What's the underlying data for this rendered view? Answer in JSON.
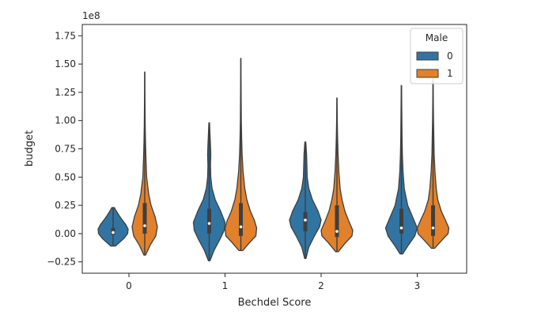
{
  "chart_data": {
    "type": "violin",
    "xlabel": "Bechdel Score",
    "ylabel": "budget",
    "offset_text": "1e8",
    "categories": [
      "0",
      "1",
      "2",
      "3"
    ],
    "ylim": [
      -0.35,
      1.85
    ],
    "yticks": [
      -0.25,
      0.0,
      0.25,
      0.5,
      0.75,
      1.0,
      1.25,
      1.5,
      1.75
    ],
    "ytick_labels": [
      "−0.25",
      "0.00",
      "0.25",
      "0.50",
      "0.75",
      "1.00",
      "1.25",
      "1.50",
      "1.75"
    ],
    "legend": {
      "title": "Male",
      "placement": "top-right"
    },
    "series": [
      {
        "name": "0",
        "color": "#3274a1",
        "violins": [
          {
            "category": "0",
            "min": -0.11,
            "max": 0.23,
            "q1": -0.01,
            "median": 0.01,
            "q3": 0.05,
            "profile": [
              [
                -0.11,
                0.15
              ],
              [
                -0.08,
                0.38
              ],
              [
                -0.04,
                0.7
              ],
              [
                0.0,
                0.92
              ],
              [
                0.04,
                0.95
              ],
              [
                0.08,
                0.8
              ],
              [
                0.12,
                0.58
              ],
              [
                0.16,
                0.38
              ],
              [
                0.2,
                0.2
              ],
              [
                0.23,
                0.08
              ]
            ]
          },
          {
            "category": "1",
            "min": -0.24,
            "max": 0.98,
            "q1": 0.0,
            "median": 0.09,
            "q3": 0.22,
            "profile": [
              [
                -0.24,
                0.05
              ],
              [
                -0.15,
                0.3
              ],
              [
                -0.05,
                0.68
              ],
              [
                0.03,
                0.95
              ],
              [
                0.1,
                1.0
              ],
              [
                0.2,
                0.72
              ],
              [
                0.3,
                0.38
              ],
              [
                0.4,
                0.18
              ],
              [
                0.5,
                0.1
              ],
              [
                0.6,
                0.08
              ],
              [
                0.7,
                0.1
              ],
              [
                0.78,
                0.08
              ],
              [
                0.88,
                0.05
              ],
              [
                0.98,
                0.02
              ]
            ]
          },
          {
            "category": "2",
            "min": -0.22,
            "max": 0.81,
            "q1": 0.02,
            "median": 0.12,
            "q3": 0.19,
            "profile": [
              [
                -0.22,
                0.04
              ],
              [
                -0.12,
                0.22
              ],
              [
                -0.02,
                0.58
              ],
              [
                0.06,
                0.9
              ],
              [
                0.12,
                1.0
              ],
              [
                0.2,
                0.8
              ],
              [
                0.3,
                0.45
              ],
              [
                0.4,
                0.22
              ],
              [
                0.5,
                0.12
              ],
              [
                0.6,
                0.1
              ],
              [
                0.7,
                0.08
              ],
              [
                0.81,
                0.03
              ]
            ]
          },
          {
            "category": "3",
            "min": -0.18,
            "max": 1.31,
            "q1": 0.0,
            "median": 0.05,
            "q3": 0.22,
            "profile": [
              [
                -0.18,
                0.08
              ],
              [
                -0.1,
                0.45
              ],
              [
                -0.02,
                0.85
              ],
              [
                0.05,
                1.0
              ],
              [
                0.15,
                0.7
              ],
              [
                0.25,
                0.4
              ],
              [
                0.4,
                0.18
              ],
              [
                0.55,
                0.1
              ],
              [
                0.7,
                0.06
              ],
              [
                0.85,
                0.04
              ],
              [
                1.0,
                0.03
              ],
              [
                1.15,
                0.02
              ],
              [
                1.31,
                0.01
              ]
            ]
          }
        ]
      },
      {
        "name": "1",
        "color": "#e1812c",
        "violins": [
          {
            "category": "0",
            "min": -0.19,
            "max": 1.43,
            "q1": 0.0,
            "median": 0.07,
            "q3": 0.27,
            "profile": [
              [
                -0.19,
                0.05
              ],
              [
                -0.1,
                0.35
              ],
              [
                -0.02,
                0.7
              ],
              [
                0.06,
                0.8
              ],
              [
                0.15,
                0.65
              ],
              [
                0.25,
                0.4
              ],
              [
                0.35,
                0.25
              ],
              [
                0.5,
                0.12
              ],
              [
                0.65,
                0.08
              ],
              [
                0.8,
                0.05
              ],
              [
                0.95,
                0.03
              ],
              [
                1.1,
                0.02
              ],
              [
                1.25,
                0.01
              ],
              [
                1.43,
                0.005
              ]
            ]
          },
          {
            "category": "1",
            "min": -0.15,
            "max": 1.55,
            "q1": -0.02,
            "median": 0.06,
            "q3": 0.27,
            "profile": [
              [
                -0.15,
                0.12
              ],
              [
                -0.08,
                0.55
              ],
              [
                -0.02,
                0.95
              ],
              [
                0.05,
                1.0
              ],
              [
                0.12,
                0.85
              ],
              [
                0.2,
                0.6
              ],
              [
                0.3,
                0.38
              ],
              [
                0.4,
                0.25
              ],
              [
                0.55,
                0.14
              ],
              [
                0.7,
                0.08
              ],
              [
                0.85,
                0.05
              ],
              [
                1.0,
                0.03
              ],
              [
                1.2,
                0.02
              ],
              [
                1.4,
                0.01
              ],
              [
                1.55,
                0.005
              ]
            ]
          },
          {
            "category": "2",
            "min": -0.16,
            "max": 1.2,
            "q1": -0.03,
            "median": 0.02,
            "q3": 0.25,
            "profile": [
              [
                -0.16,
                0.08
              ],
              [
                -0.08,
                0.55
              ],
              [
                -0.02,
                0.95
              ],
              [
                0.03,
                1.0
              ],
              [
                0.1,
                0.78
              ],
              [
                0.2,
                0.5
              ],
              [
                0.3,
                0.32
              ],
              [
                0.4,
                0.2
              ],
              [
                0.55,
                0.12
              ],
              [
                0.7,
                0.07
              ],
              [
                0.85,
                0.04
              ],
              [
                1.0,
                0.02
              ],
              [
                1.2,
                0.005
              ]
            ]
          },
          {
            "category": "3",
            "min": -0.13,
            "max": 1.38,
            "q1": -0.02,
            "median": 0.05,
            "q3": 0.25,
            "profile": [
              [
                -0.13,
                0.1
              ],
              [
                -0.06,
                0.55
              ],
              [
                0.0,
                0.95
              ],
              [
                0.05,
                1.0
              ],
              [
                0.12,
                0.78
              ],
              [
                0.2,
                0.52
              ],
              [
                0.3,
                0.3
              ],
              [
                0.4,
                0.2
              ],
              [
                0.55,
                0.12
              ],
              [
                0.7,
                0.07
              ],
              [
                0.85,
                0.05
              ],
              [
                1.0,
                0.03
              ],
              [
                1.2,
                0.015
              ],
              [
                1.38,
                0.005
              ]
            ]
          }
        ]
      }
    ]
  }
}
